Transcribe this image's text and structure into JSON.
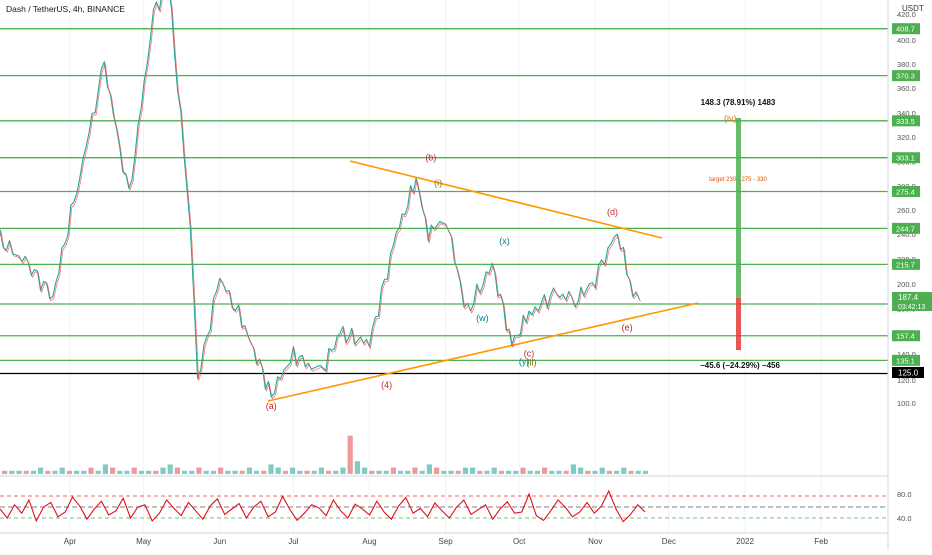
{
  "header": {
    "symbol_title": "Dash / TetherUS, 4h, BINANCE",
    "currency": "USDT"
  },
  "colors": {
    "background": "#ffffff",
    "level_line": "#4caf50",
    "level_label_bg": "#4caf50",
    "trendline": "#ff9800",
    "price_line": "#000000",
    "rsi_line": "#e0101a",
    "profit_box": "#4caf50",
    "loss_box": "#e53935",
    "candle_up": "#26a69a",
    "candle_down": "#ef5350"
  },
  "chart_data": [
    {
      "type": "line",
      "name": "price",
      "x": [
        "2021-03-01",
        "2021-03-15",
        "2021-03-25",
        "2021-04-05",
        "2021-04-15",
        "2021-04-25",
        "2021-05-05",
        "2021-05-11",
        "2021-05-20",
        "2021-05-23",
        "2021-06-01",
        "2021-06-10",
        "2021-06-22",
        "2021-07-01",
        "2021-07-12",
        "2021-07-20",
        "2021-08-01",
        "2021-08-12",
        "2021-08-20",
        "2021-08-25",
        "2021-09-01",
        "2021-09-07",
        "2021-09-10",
        "2021-09-20",
        "2021-09-28",
        "2021-10-05",
        "2021-10-15",
        "2021-10-25",
        "2021-11-01",
        "2021-11-10",
        "2021-11-15",
        "2021-11-19"
      ],
      "values": [
        240,
        215,
        190,
        290,
        380,
        270,
        420,
        445,
        250,
        120,
        205,
        170,
        108,
        140,
        125,
        160,
        150,
        240,
        285,
        240,
        255,
        200,
        178,
        215,
        150,
        175,
        192,
        188,
        205,
        243,
        200,
        187.4
      ],
      "ylim": [
        100,
        420
      ],
      "y_ticks": [
        100,
        120,
        140,
        160,
        180,
        200,
        220,
        240,
        260,
        280,
        300,
        320,
        340,
        360,
        380,
        400,
        420
      ]
    },
    {
      "type": "bar",
      "name": "volume",
      "values": [
        1,
        1,
        1,
        1,
        1,
        2,
        1,
        1,
        2,
        1,
        1,
        1,
        2,
        1,
        3,
        2,
        1,
        1,
        2,
        1,
        1,
        1,
        2,
        3,
        2,
        1,
        1,
        2,
        1,
        1,
        2,
        1,
        1,
        1,
        2,
        1,
        1,
        3,
        2,
        1,
        2,
        1,
        1,
        1,
        2,
        1,
        1,
        2,
        12,
        4,
        2,
        1,
        1,
        1,
        2,
        1,
        1,
        2,
        1,
        3,
        2,
        1,
        1,
        1,
        2,
        2,
        1,
        1,
        2,
        1,
        1,
        1,
        2,
        1,
        1,
        2,
        1,
        1,
        1,
        3,
        2,
        1,
        1,
        2,
        1,
        1,
        2,
        1,
        1,
        1
      ]
    },
    {
      "type": "line",
      "name": "RSI",
      "ylim": [
        20,
        90
      ],
      "y_ticks": [
        40.0,
        80.0
      ],
      "levels": [
        70,
        50,
        30
      ],
      "values": [
        55,
        40,
        62,
        48,
        70,
        35,
        58,
        66,
        42,
        50,
        75,
        60,
        38,
        55,
        68,
        45,
        52,
        73,
        40,
        58,
        62,
        35,
        48,
        70,
        56,
        44,
        66,
        52,
        38,
        60,
        72,
        46,
        55,
        64,
        40,
        58,
        68,
        42,
        50,
        76,
        54,
        36,
        48,
        62,
        57,
        44,
        70,
        52,
        40,
        63,
        55,
        45,
        68,
        50,
        38,
        60,
        74,
        48,
        56,
        42,
        65,
        52,
        40,
        58,
        70,
        46,
        54,
        62,
        38,
        55,
        67,
        48,
        50,
        80,
        44,
        36,
        52,
        70,
        58,
        42,
        50,
        66,
        48,
        60,
        85,
        55,
        34,
        46,
        62,
        50
      ]
    }
  ],
  "price_axis": {
    "current_price": "187.4",
    "countdown": "03:42:13",
    "dark_line_label": "125.0"
  },
  "levels": [
    {
      "value": 408.7,
      "label": "408.7"
    },
    {
      "value": 370.3,
      "label": "370.3"
    },
    {
      "value": 333.5,
      "label": "333.5"
    },
    {
      "value": 303.1,
      "label": "303.1"
    },
    {
      "value": 275.4,
      "label": "275.4"
    },
    {
      "value": 244.7,
      "label": "244.7"
    },
    {
      "value": 215.7,
      "label": "215.7"
    },
    {
      "value": 183.7,
      "label": "183.7"
    },
    {
      "value": 157.4,
      "label": "157.4"
    },
    {
      "value": 135.1,
      "label": "135.1"
    }
  ],
  "time_axis": [
    "Apr",
    "May",
    "Jun",
    "Jul",
    "Aug",
    "Sep",
    "Oct",
    "Nov",
    "Dec",
    "2022",
    "Feb"
  ],
  "wave_labels": [
    {
      "text": "(a)",
      "color": "#c62828"
    },
    {
      "text": "(b)",
      "color": "#c62828"
    },
    {
      "text": "(i)",
      "color": "#8d6e00"
    },
    {
      "text": "(x)",
      "color": "#00838f"
    },
    {
      "text": "(w)",
      "color": "#00838f"
    },
    {
      "text": "(c)",
      "color": "#c62828"
    },
    {
      "text": "(y)",
      "color": "#00838f"
    },
    {
      "text": "(ii)",
      "color": "#8d6e00"
    },
    {
      "text": "(d)",
      "color": "#c62828"
    },
    {
      "text": "(e)",
      "color": "#c62828"
    },
    {
      "text": "(4)",
      "color": "#c62828"
    },
    {
      "text": "(iv)",
      "color": "#ef6c00"
    }
  ],
  "annotations": {
    "target_text": "target 230 - 275 - 330",
    "profit_text": "148.3 (78.91%) 1483",
    "loss_text": "−45.6 (−24.29%) −456"
  }
}
